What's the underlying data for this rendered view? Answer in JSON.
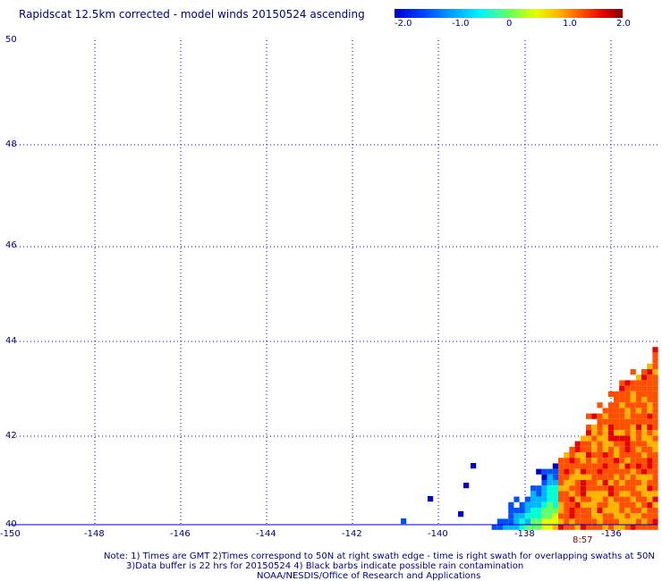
{
  "title": "Rapidscat 12.5km corrected - model winds 20150524 ascending",
  "colorbar": {
    "ticks": [
      "-2.0",
      "-1.0",
      "0",
      "1.0",
      "2.0"
    ],
    "range": [
      -2.0,
      2.0
    ],
    "colors": [
      "#0000c8",
      "#0050ff",
      "#00b4ff",
      "#00ffd2",
      "#64ff64",
      "#e6ff00",
      "#ffb400",
      "#ff5000",
      "#e60000",
      "#820000"
    ]
  },
  "map": {
    "lon_labels": [
      "-150",
      "-148",
      "-146",
      "-144",
      "-142",
      "-140",
      "-138",
      "-136"
    ],
    "lat_labels": [
      "50",
      "48",
      "46",
      "44",
      "42",
      "40"
    ],
    "lon_range": [
      -150,
      -135
    ],
    "lat_range": [
      40,
      50
    ],
    "grid": "dotted",
    "gridColor": "#0000c8",
    "time_label": "8:57"
  },
  "notes": {
    "line1": "Note: 1) Times are GMT 2)Times correspond to 50N at right swath edge - time is right swath for overlapping swaths at 50N",
    "line2": "3)Data buffer is 22 hrs for 20150524 4) Black barbs indicate possible rain contamination",
    "line3": "NOAA/NESDIS/Office of Research and Applications"
  }
}
